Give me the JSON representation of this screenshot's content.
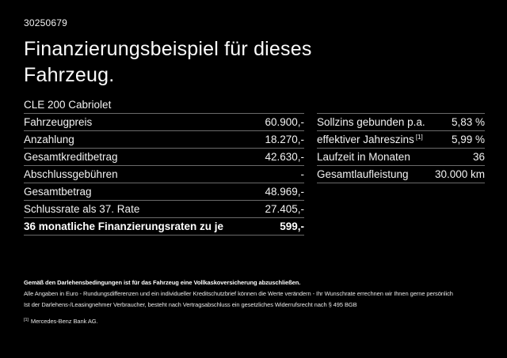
{
  "colors": {
    "background": "#000000",
    "text": "#f5f5f5",
    "divider": "#6a6a6a"
  },
  "header": {
    "doc_number": "30250679",
    "title_line1": "Finanzierungsbeispiel für dieses",
    "title_line2": "Fahrzeug."
  },
  "vehicle_table": {
    "header": "CLE 200 Cabriolet",
    "rows": [
      {
        "label": "Fahrzeugpreis",
        "value": "60.900,-"
      },
      {
        "label": "Anzahlung",
        "value": "18.270,-"
      },
      {
        "label": "Gesamtkreditbetrag",
        "value": "42.630,-"
      },
      {
        "label": "Abschlussgebühren",
        "value": "-"
      },
      {
        "label": "Gesamtbetrag",
        "value": "48.969,-"
      },
      {
        "label": "Schlussrate als 37. Rate",
        "value": "27.405,-"
      },
      {
        "label": "36 monatliche Finanzierungsraten zu je",
        "value": "599,-"
      }
    ]
  },
  "conditions_table": {
    "rows": [
      {
        "label": "Sollzins gebunden p.a.",
        "value": "5,83 %"
      },
      {
        "label": "effektiver Jahreszins",
        "sup_marker": "[1]",
        "value": "5,99 %"
      },
      {
        "label": "Laufzeit in Monaten",
        "value": "36"
      },
      {
        "label": "Gesamtlaufleistung",
        "value": "30.000 km"
      }
    ]
  },
  "footer": {
    "insurance_note": "Gemäß den Darlehensbedingungen ist für das Fahrzeug eine Vollkaskoversicherung abzuschließen.",
    "line1": "Alle Angaben in Euro - Rundungsdifferenzen und ein individueller Kreditschutzbrief können die Werte verändern - Ihr Wunschrate errechnen wir Ihnen gerne persönlich",
    "line2": "Ist der Darlehens-/Leasingnehmer Verbraucher, besteht nach Vertragsabschluss ein gesetzliches Widerrufsrecht nach § 495 BGB",
    "footnote_marker": "[1]",
    "footnote_text": "Mercedes-Benz Bank AG."
  }
}
